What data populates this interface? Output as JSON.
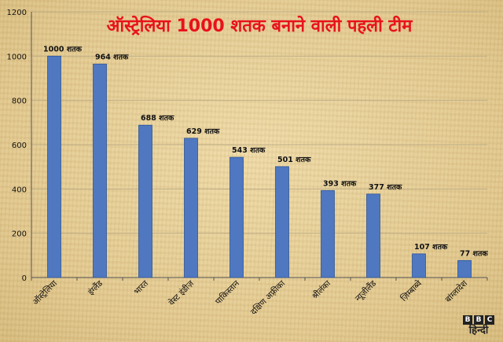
{
  "colors": {
    "bar": "#4f78c0",
    "bar_edge": "#2f5597",
    "title": "#e8121b",
    "grid": "#bfae86",
    "text": "#111111"
  },
  "chart_data": {
    "type": "bar",
    "title": "ऑस्ट्रेलिया 1000 शतक बनाने वाली पहली टीम",
    "categories": [
      "ऑस्ट्रेलिया",
      "इंग्लैंड",
      "भारत",
      "वेस्ट इंडीज़",
      "पाकिस्तान",
      "दक्षिण अफ़्रीका",
      "श्रीलंका",
      "न्यूज़ीलैंड",
      "ज़िम्बाब्वे",
      "बांग्लादेश"
    ],
    "values": [
      1000,
      964,
      688,
      629,
      543,
      501,
      393,
      377,
      107,
      77
    ],
    "data_labels": [
      "1000 शतक",
      "964 शतक",
      "688 शतक",
      "629 शतक",
      "543 शतक",
      "501 शतक",
      "393 शतक",
      "377 शतक",
      "107 शतक",
      "77 शतक"
    ],
    "ylim": [
      0,
      1200
    ],
    "yticks": [
      0,
      200,
      400,
      600,
      800,
      1000,
      1200
    ],
    "grid": true,
    "xlabel": "",
    "ylabel": ""
  },
  "logo": {
    "blocks": [
      "B",
      "B",
      "C"
    ],
    "text": "हिन्दी"
  }
}
